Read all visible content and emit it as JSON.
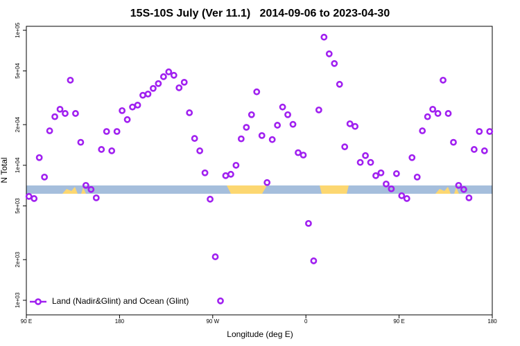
{
  "chart_data": {
    "type": "scatter",
    "title": "15S-10S July (Ver 11.1)   2014-09-06 to 2023-04-30",
    "x_label": "Longitude (deg E)",
    "y_label": "N Total",
    "log_y": true,
    "legend": "bottom-left",
    "xlim": [
      90,
      540
    ],
    "ylim": [
      780,
      107000
    ],
    "xticks": [
      {
        "value": 90,
        "label": "90 E"
      },
      180,
      {
        "value": 270,
        "label": "90 W"
      },
      {
        "value": 360,
        "label": "0"
      },
      {
        "value": 450,
        "label": "90 E"
      },
      {
        "value": 540,
        "label": "180"
      }
    ],
    "yticks": [
      {
        "value": 1000,
        "label": "1e+03"
      },
      {
        "value": 2000,
        "label": "2e+03"
      },
      {
        "value": 5000,
        "label": "5e+03"
      },
      {
        "value": 10000,
        "label": "1e+04"
      },
      {
        "value": 20000,
        "label": "2e+04"
      },
      {
        "value": 50000,
        "label": "5e+04"
      },
      {
        "value": 100000,
        "label": "1e+05"
      }
    ],
    "series": [
      {
        "name": "Land (Nadir&Glint) and Ocean (Glint)",
        "color": "#a020f0",
        "x": [
          92.5,
          97.5,
          102.5,
          107.5,
          112.5,
          117.5,
          122.5,
          127.5,
          132.5,
          137.5,
          142.5,
          147.5,
          152.5,
          157.5,
          162.5,
          167.5,
          172.5,
          177.5,
          182.5,
          187.5,
          192.5,
          197.5,
          202.5,
          207.5,
          212.5,
          217.5,
          222.5,
          227.5,
          232.5,
          237.5,
          242.5,
          247.5,
          252.5,
          257.5,
          262.5,
          267.5,
          272.5,
          277.5,
          282.5,
          287.5,
          292.5,
          297.5,
          302.5,
          307.5,
          312.5,
          317.5,
          322.5,
          327.5,
          332.5,
          337.5,
          342.5,
          347.5,
          352.5,
          357.5,
          362.5,
          367.5,
          372.5,
          377.5,
          382.5,
          387.5,
          392.5,
          397.5,
          402.5,
          407.5,
          412.5,
          417.5,
          422.5,
          427.5,
          432.5,
          437.5,
          442.5,
          447.5,
          452.5,
          457.5,
          462.5,
          467.5,
          472.5,
          477.5,
          482.5,
          487.5,
          492.5,
          497.5,
          502.5,
          507.5,
          512.5,
          517.5,
          522.5,
          527.5,
          532.5,
          537.5
        ],
        "values": [
          5880,
          5670,
          11400,
          8180,
          18000,
          22900,
          26000,
          24200,
          42700,
          24200,
          14800,
          7100,
          6620,
          5740,
          13100,
          17800,
          12800,
          17800,
          25400,
          21800,
          27000,
          27900,
          33000,
          33700,
          37100,
          40300,
          45300,
          49200,
          46400,
          37500,
          41200,
          24500,
          15800,
          12800,
          8790,
          5610,
          2100,
          990,
          8380,
          8580,
          10000,
          15700,
          19100,
          23700,
          35000,
          16600,
          7450,
          15500,
          19800,
          27000,
          23700,
          20100,
          12400,
          11900,
          3710,
          1960,
          25700,
          88900,
          66900,
          56700,
          39800,
          13700,
          20300,
          19400,
          10500,
          11800,
          10500,
          8380,
          8790,
          7270,
          6690,
          8670,
          5950,
          5670,
          11400,
          8180,
          18000,
          22900,
          26000,
          24200,
          42700,
          24200,
          14800,
          7100,
          6620,
          5740,
          13100,
          17800,
          12800,
          17800
        ]
      }
    ]
  }
}
